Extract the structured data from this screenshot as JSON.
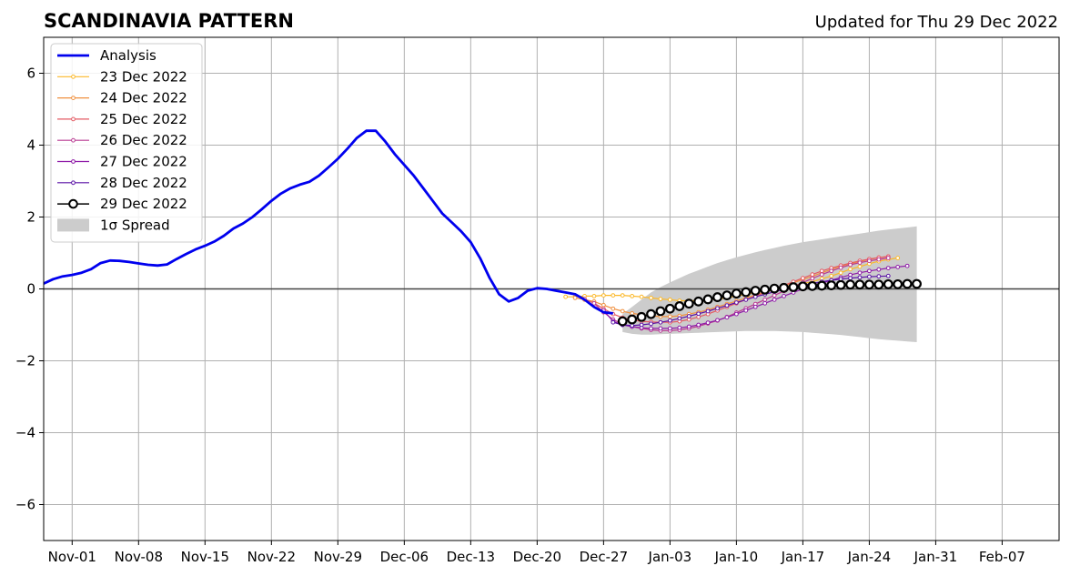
{
  "chart_data": {
    "type": "line",
    "title": "SCANDINAVIA PATTERN",
    "subtitle": "Updated for Thu 29 Dec 2022",
    "x_axis": {
      "type": "date",
      "range": [
        "2022-10-29",
        "2023-02-13"
      ],
      "ticks": [
        {
          "date": "2022-11-01",
          "label": "Nov-01"
        },
        {
          "date": "2022-11-08",
          "label": "Nov-08"
        },
        {
          "date": "2022-11-15",
          "label": "Nov-15"
        },
        {
          "date": "2022-11-22",
          "label": "Nov-22"
        },
        {
          "date": "2022-11-29",
          "label": "Nov-29"
        },
        {
          "date": "2022-12-06",
          "label": "Dec-06"
        },
        {
          "date": "2022-12-13",
          "label": "Dec-13"
        },
        {
          "date": "2022-12-20",
          "label": "Dec-20"
        },
        {
          "date": "2022-12-27",
          "label": "Dec-27"
        },
        {
          "date": "2023-01-03",
          "label": "Jan-03"
        },
        {
          "date": "2023-01-10",
          "label": "Jan-10"
        },
        {
          "date": "2023-01-17",
          "label": "Jan-17"
        },
        {
          "date": "2023-01-24",
          "label": "Jan-24"
        },
        {
          "date": "2023-01-31",
          "label": "Jan-31"
        },
        {
          "date": "2023-02-07",
          "label": "Feb-07"
        }
      ]
    },
    "y_axis": {
      "range": [
        -7,
        7
      ],
      "ticks": [
        {
          "value": -6,
          "label": "−6"
        },
        {
          "value": -4,
          "label": "−4"
        },
        {
          "value": -2,
          "label": "−2"
        },
        {
          "value": 0,
          "label": "0"
        },
        {
          "value": 2,
          "label": "2"
        },
        {
          "value": 4,
          "label": "4"
        },
        {
          "value": 6,
          "label": "6"
        }
      ]
    },
    "grid": true,
    "legend_position": "top-left",
    "analysis": {
      "name": "Analysis",
      "color": "#0000ee",
      "start": "2022-10-29",
      "values": [
        0.15,
        0.27,
        0.35,
        0.39,
        0.45,
        0.55,
        0.72,
        0.79,
        0.78,
        0.75,
        0.71,
        0.67,
        0.65,
        0.68,
        0.83,
        0.97,
        1.1,
        1.2,
        1.32,
        1.48,
        1.68,
        1.82,
        2.0,
        2.22,
        2.45,
        2.65,
        2.8,
        2.9,
        2.98,
        3.15,
        3.38,
        3.62,
        3.9,
        4.2,
        4.4,
        4.4,
        4.1,
        3.75,
        3.45,
        3.15,
        2.8,
        2.45,
        2.1,
        1.85,
        1.6,
        1.3,
        0.85,
        0.3,
        -0.15,
        -0.35,
        -0.25,
        -0.05,
        0.02,
        0.0,
        -0.05,
        -0.1,
        -0.15,
        -0.3,
        -0.5,
        -0.65,
        -0.68
      ]
    },
    "forecasts": [
      {
        "name": "23 Dec 2022",
        "color": "#fbb829",
        "start": "2022-12-23",
        "values": [
          -0.22,
          -0.22,
          -0.2,
          -0.2,
          -0.18,
          -0.18,
          -0.18,
          -0.2,
          -0.22,
          -0.25,
          -0.28,
          -0.3,
          -0.33,
          -0.33,
          -0.33,
          -0.3,
          -0.28,
          -0.25,
          -0.2,
          -0.15,
          -0.1,
          -0.05,
          0.0,
          0.05,
          0.1,
          0.15,
          0.2,
          0.28,
          0.36,
          0.45,
          0.55,
          0.62,
          0.7,
          0.77,
          0.82,
          0.86
        ]
      },
      {
        "name": "24 Dec 2022",
        "color": "#f0903f",
        "start": "2022-12-24",
        "values": [
          -0.25,
          -0.3,
          -0.35,
          -0.45,
          -0.55,
          -0.62,
          -0.68,
          -0.72,
          -0.75,
          -0.77,
          -0.77,
          -0.75,
          -0.7,
          -0.65,
          -0.58,
          -0.5,
          -0.42,
          -0.34,
          -0.25,
          -0.17,
          -0.08,
          0.0,
          0.08,
          0.17,
          0.26,
          0.35,
          0.45,
          0.54,
          0.63,
          0.7,
          0.76,
          0.82,
          0.87,
          0.9
        ]
      },
      {
        "name": "25 Dec 2022",
        "color": "#e35a63",
        "start": "2022-12-25",
        "values": [
          -0.28,
          -0.4,
          -0.55,
          -0.7,
          -0.8,
          -0.86,
          -0.9,
          -0.92,
          -0.93,
          -0.93,
          -0.9,
          -0.85,
          -0.78,
          -0.7,
          -0.6,
          -0.5,
          -0.4,
          -0.3,
          -0.2,
          -0.1,
          0.0,
          0.1,
          0.2,
          0.3,
          0.4,
          0.5,
          0.58,
          0.65,
          0.72,
          0.78,
          0.83,
          0.87,
          0.9
        ]
      },
      {
        "name": "26 Dec 2022",
        "color": "#b93a92",
        "start": "2022-12-26",
        "values": [
          -0.4,
          -0.65,
          -0.85,
          -0.98,
          -1.05,
          -1.1,
          -1.14,
          -1.16,
          -1.16,
          -1.14,
          -1.1,
          -1.04,
          -0.96,
          -0.88,
          -0.78,
          -0.66,
          -0.54,
          -0.42,
          -0.3,
          -0.18,
          -0.06,
          0.06,
          0.18,
          0.29,
          0.4,
          0.5,
          0.59,
          0.67,
          0.73,
          0.78,
          0.82,
          0.86
        ]
      },
      {
        "name": "27 Dec 2022",
        "color": "#8e1aa8",
        "start": "2022-12-27",
        "values": [
          -0.6,
          -0.9,
          -1.0,
          -1.05,
          -1.08,
          -1.1,
          -1.1,
          -1.1,
          -1.08,
          -1.05,
          -1.0,
          -0.94,
          -0.87,
          -0.79,
          -0.7,
          -0.6,
          -0.5,
          -0.4,
          -0.3,
          -0.2,
          -0.1,
          0.0,
          0.08,
          0.16,
          0.24,
          0.32,
          0.39,
          0.45,
          0.5,
          0.54,
          0.58,
          0.61,
          0.64
        ]
      },
      {
        "name": "28 Dec 2022",
        "color": "#5a12a6",
        "start": "2022-12-28",
        "values": [
          -0.93,
          -1.0,
          -1.02,
          -1.0,
          -0.97,
          -0.93,
          -0.88,
          -0.82,
          -0.76,
          -0.69,
          -0.62,
          -0.54,
          -0.46,
          -0.38,
          -0.3,
          -0.22,
          -0.15,
          -0.08,
          -0.02,
          0.04,
          0.1,
          0.15,
          0.2,
          0.24,
          0.27,
          0.3,
          0.32,
          0.34,
          0.35,
          0.36
        ]
      }
    ],
    "current": {
      "name": "29 Dec 2022",
      "color": "#000000",
      "start": "2022-12-29",
      "values": [
        -0.9,
        -0.85,
        -0.78,
        -0.7,
        -0.62,
        -0.55,
        -0.48,
        -0.41,
        -0.35,
        -0.29,
        -0.23,
        -0.18,
        -0.13,
        -0.09,
        -0.05,
        -0.02,
        0.01,
        0.03,
        0.05,
        0.07,
        0.08,
        0.09,
        0.1,
        0.11,
        0.12,
        0.12,
        0.12,
        0.12,
        0.13,
        0.13,
        0.14,
        0.14
      ]
    },
    "spread": {
      "name": "1σ Spread",
      "color": "#cccccc",
      "start": "2022-12-29",
      "upper": [
        -0.7,
        -0.5,
        -0.3,
        -0.1,
        0.05,
        0.18,
        0.3,
        0.42,
        0.52,
        0.62,
        0.72,
        0.8,
        0.88,
        0.95,
        1.02,
        1.08,
        1.14,
        1.2,
        1.25,
        1.3,
        1.34,
        1.38,
        1.42,
        1.46,
        1.5,
        1.54,
        1.58,
        1.62,
        1.65,
        1.68,
        1.71,
        1.74
      ],
      "lower": [
        -1.2,
        -1.25,
        -1.27,
        -1.27,
        -1.26,
        -1.25,
        -1.24,
        -1.23,
        -1.22,
        -1.21,
        -1.2,
        -1.19,
        -1.18,
        -1.17,
        -1.17,
        -1.17,
        -1.17,
        -1.18,
        -1.19,
        -1.2,
        -1.22,
        -1.24,
        -1.26,
        -1.28,
        -1.31,
        -1.34,
        -1.37,
        -1.4,
        -1.42,
        -1.44,
        -1.46,
        -1.48
      ]
    }
  }
}
